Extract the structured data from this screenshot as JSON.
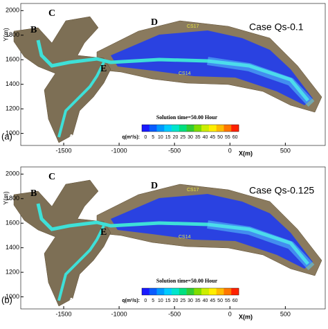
{
  "panels": [
    {
      "label": "(a)",
      "case": "Case Qs-0.1",
      "y_axis_label": "Y(m)",
      "x_axis_label": "X(m)",
      "xlim": [
        -1700,
        860
      ],
      "ylim": [
        930,
        2030
      ],
      "xticks": [
        -1500,
        -1000,
        -500,
        0,
        500
      ],
      "yticks": [
        2000,
        1800,
        1600,
        1400,
        1200,
        1000
      ],
      "points": [
        "A",
        "B",
        "C",
        "D",
        "E"
      ],
      "sections": [
        "CS17",
        "CS14"
      ],
      "solution_time": "Solution time=50.00 Hour",
      "legend_title": "q(m²/s):",
      "legend_ticks": [
        0,
        5,
        10,
        15,
        20,
        25,
        30,
        35,
        40,
        45,
        50,
        55,
        60
      ]
    },
    {
      "label": "(b)",
      "case": "Case Qs-0.125",
      "y_axis_label": "Y(m)",
      "x_axis_label": "X(m)",
      "xlim": [
        -1700,
        860
      ],
      "ylim": [
        930,
        2030
      ],
      "xticks": [
        -1500,
        -1000,
        -500,
        0,
        500
      ],
      "yticks": [
        2000,
        1800,
        1600,
        1400,
        1200,
        1000
      ],
      "points": [
        "A",
        "B",
        "C",
        "D",
        "E"
      ],
      "sections": [
        "CS17",
        "CS14"
      ],
      "solution_time": "Solution time=50.00 Hour",
      "legend_title": "q(m²/s):",
      "legend_ticks": [
        0,
        5,
        10,
        15,
        20,
        25,
        30,
        35,
        40,
        45,
        50,
        55,
        60
      ]
    }
  ],
  "legend_colors": [
    "#1a1aff",
    "#0a5cff",
    "#0099ff",
    "#00ccff",
    "#00e5cc",
    "#00e080",
    "#33cc33",
    "#80dd00",
    "#ccee00",
    "#ffee00",
    "#ffbb00",
    "#ff7700",
    "#ff2200"
  ]
}
